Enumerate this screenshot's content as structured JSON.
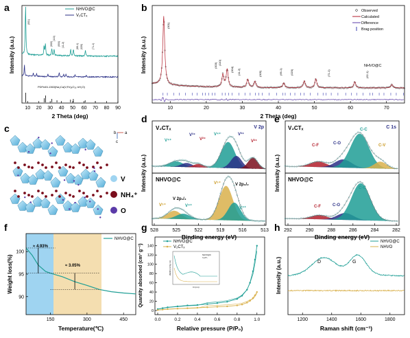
{
  "colors": {
    "teal": "#1e9e95",
    "navy": "#2a2f86",
    "darkred": "#7a0d1c",
    "gold": "#d9b04b",
    "lightblue": "#9fd4f1",
    "wheat": "#f4deb0",
    "purple": "#5b3ba8",
    "red": "#b31f2c"
  },
  "panels": {
    "a": {
      "letter": "a",
      "xlabel": "2 Theta (deg)",
      "ylabel": "Intensity (a.u.)",
      "xticks": [
        "10",
        "20",
        "30",
        "40",
        "50",
        "60",
        "70",
        "80",
        "90"
      ],
      "legend": [
        "NHVO@C",
        "V₂CTₓ"
      ],
      "pdf": "PDF#45-1363(Na₂Ca(V,Fe)₆O₁₆·nH₂O)",
      "peaks": [
        "(001)",
        "(002)",
        "(110)",
        "(004)",
        "(11-2)",
        "(66-1)",
        "(020)",
        "(71-1)"
      ]
    },
    "b": {
      "letter": "b",
      "xlabel": "2 Theta (deg)",
      "ylabel": "Intensity (a.u.)",
      "xticks": [
        "10",
        "20",
        "30",
        "40",
        "50",
        "60",
        "70"
      ],
      "legend": [
        "Observed",
        "Calculated",
        "Difference",
        "Brag position"
      ],
      "sample": "NHVO@C",
      "peaks": [
        "(001)",
        "(003)",
        "(110)",
        "(004)",
        "(11-2)",
        "(005)",
        "(66-1)",
        "(020)",
        "(71-1)",
        "(62-1)"
      ]
    },
    "c": {
      "letter": "c",
      "axis_b": "b",
      "axis_a": "a",
      "axis_c": "c",
      "legend": [
        {
          "sym": "V",
          "color": "#9fd4f1"
        },
        {
          "sym": "NH₄⁺",
          "color": "#7a0d1c"
        },
        {
          "sym": "O",
          "color": "#5b3ba8"
        }
      ]
    },
    "d": {
      "letter": "d",
      "top_title": "V₂CTₓ",
      "corner": "V 2p",
      "bottom_title": "NHVO@C",
      "xlabel": "Binding energy (eV)",
      "ylabel": "Intensity (a.u.)",
      "xticks": [
        "528",
        "525",
        "522",
        "519",
        "516",
        "513"
      ],
      "top_labels": [
        "V⁴⁺",
        "V³⁺",
        "V²⁺",
        "V⁴⁺",
        "V³⁺",
        "V²⁺"
      ],
      "bottom_labels": [
        "V⁵⁺",
        "V 2p₁/₂",
        "V⁴⁺",
        "V⁵⁺",
        "V 2p₃/₂",
        "V⁴⁺"
      ]
    },
    "e": {
      "letter": "e",
      "top_title": "V₂CTₓ",
      "corner": "C 1s",
      "bottom_title": "NHVO@C",
      "xlabel": "Binding energy (eV)",
      "ylabel": "Intensity (a.u.)",
      "xticks": [
        "292",
        "290",
        "288",
        "286",
        "284",
        "282"
      ],
      "top_labels": [
        "C-F",
        "C-O",
        "C-C",
        "C-V"
      ],
      "bottom_labels": [
        "C-F",
        "C-O",
        "C-C"
      ]
    },
    "f": {
      "letter": "f",
      "xlabel": "Temperature(℃)",
      "ylabel": "Weight loss(%)",
      "xticks": [
        "150",
        "300",
        "450"
      ],
      "yticks": [
        "90",
        "95",
        "100"
      ],
      "legend": "NHVO@C",
      "ann1": "≈ 4.93%",
      "ann2": "≈ 3.05%"
    },
    "g": {
      "letter": "g",
      "xlabel": "Relative pressure (P/P₀)",
      "ylabel": "Quantity absorbed (cm³ g⁻¹)",
      "xticks": [
        "0.0",
        "0.2",
        "0.4",
        "0.6",
        "0.8",
        "1.0"
      ],
      "yticks": [
        "0",
        "20",
        "40",
        "60",
        "80",
        "100",
        "120",
        "140"
      ],
      "legend": [
        "NHVO@C",
        "V₂CTₓ"
      ],
      "inset_legend": [
        "NHVO@C",
        "V₂CTₓ"
      ],
      "inset_xlabel": "D (nm)",
      "inset_ylabel": "dV/dD (cm³/g·nm)"
    },
    "h": {
      "letter": "h",
      "xlabel": "Raman shift  (cm⁻¹)",
      "ylabel": "Intensity (a.u.)",
      "xticks": [
        "1200",
        "1400",
        "1600",
        "1800"
      ],
      "legend": [
        "NHVO@C",
        "NHVO"
      ],
      "band_d": "D",
      "band_g": "G"
    }
  },
  "chart_data": [
    {
      "panel": "a",
      "type": "line",
      "xlim": [
        5,
        90
      ],
      "series": [
        {
          "name": "NHVO@C",
          "peaks_x": [
            8.2,
            24.6,
            25.8,
            31.5,
            33.5,
            48.2,
            50.6,
            61.2
          ]
        },
        {
          "name": "V₂CTₓ",
          "peaks_x": [
            7.2,
            15,
            18,
            28,
            38,
            42,
            44,
            52,
            62
          ]
        }
      ]
    },
    {
      "panel": "b",
      "type": "scatter",
      "xlim": [
        5,
        75
      ],
      "peaks": [
        {
          "x": 8.2,
          "label": "(001)"
        },
        {
          "x": 24.6,
          "label": "(003)"
        },
        {
          "x": 25.8,
          "label": "(110)"
        },
        {
          "x": 31.5,
          "label": "(004)"
        },
        {
          "x": 33.5,
          "label": "(11-2)"
        },
        {
          "x": 41.5,
          "label": "(005)"
        },
        {
          "x": 47.2,
          "label": "(66-1)"
        },
        {
          "x": 50.4,
          "label": "(020)"
        },
        {
          "x": 61.2,
          "label": "(71-1)"
        },
        {
          "x": 71.5,
          "label": "(62-1)"
        }
      ]
    },
    {
      "panel": "f",
      "type": "line",
      "xlim": [
        50,
        500
      ],
      "ylim": [
        86,
        104
      ],
      "x": [
        50,
        75,
        100,
        130,
        150,
        200,
        250,
        300,
        350,
        400,
        450,
        500
      ],
      "series": [
        {
          "name": "NHVO@C",
          "values": [
            100.8,
            99.2,
            97,
            95.6,
            95.2,
            94.4,
            93.3,
            92.5,
            91.6,
            91.1,
            90.8,
            90.6
          ]
        }
      ],
      "annotations": [
        {
          "text": "≈ 4.93%",
          "range": [
            50,
            150
          ]
        },
        {
          "text": "≈ 3.05%",
          "range": [
            150,
            350
          ]
        }
      ]
    },
    {
      "panel": "g",
      "type": "line",
      "xlim": [
        0,
        1.05
      ],
      "ylim": [
        0,
        150
      ],
      "x": [
        0.0,
        0.05,
        0.1,
        0.2,
        0.3,
        0.4,
        0.5,
        0.6,
        0.7,
        0.8,
        0.85,
        0.9,
        0.93,
        0.96,
        0.98,
        1.0
      ],
      "series": [
        {
          "name": "NHVO@C",
          "values": [
            3,
            5,
            7,
            9,
            11,
            12,
            14,
            16,
            19,
            25,
            32,
            45,
            60,
            85,
            110,
            140
          ]
        },
        {
          "name": "V₂CTₓ",
          "values": [
            1,
            2,
            3,
            4,
            5,
            6,
            7,
            8,
            9,
            11,
            13,
            17,
            21,
            27,
            33,
            40
          ]
        }
      ]
    },
    {
      "panel": "h",
      "type": "line",
      "xlim": [
        1100,
        1900
      ],
      "series": [
        {
          "name": "NHVO@C",
          "peaks_x": [
            1345,
            1580
          ]
        },
        {
          "name": "NHVO",
          "peaks_x": []
        }
      ]
    }
  ]
}
